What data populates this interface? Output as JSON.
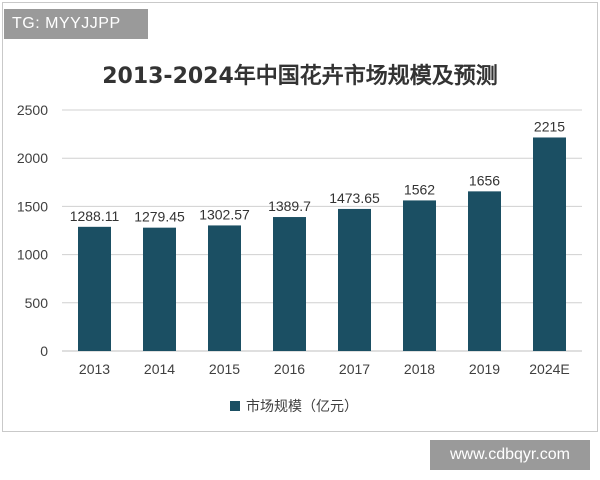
{
  "watermarks": {
    "top_left": "TG: MYYJJPP",
    "bottom_right": "www.cdbqyr.com"
  },
  "colors": {
    "bar": "#1b4f63",
    "grid": "#d0d0d0",
    "axis_text": "#404040"
  },
  "chart_data": {
    "type": "bar",
    "title": "2013-2024年中国花卉市场规模及预测",
    "categories": [
      "2013",
      "2014",
      "2015",
      "2016",
      "2017",
      "2018",
      "2019",
      "2024E"
    ],
    "series": [
      {
        "name": "市场规模（亿元）",
        "values": [
          1288.11,
          1279.45,
          1302.57,
          1389.7,
          1473.65,
          1562,
          1656,
          2215
        ],
        "labels": [
          "1288.11",
          "1279.45",
          "1302.57",
          "1389.7",
          "1473.65",
          "1562",
          "1656",
          "2215"
        ]
      }
    ],
    "ylim": [
      0,
      2500
    ],
    "yticks": [
      0,
      500,
      1000,
      1500,
      2000,
      2500
    ],
    "grid": true,
    "legend_position": "bottom"
  }
}
